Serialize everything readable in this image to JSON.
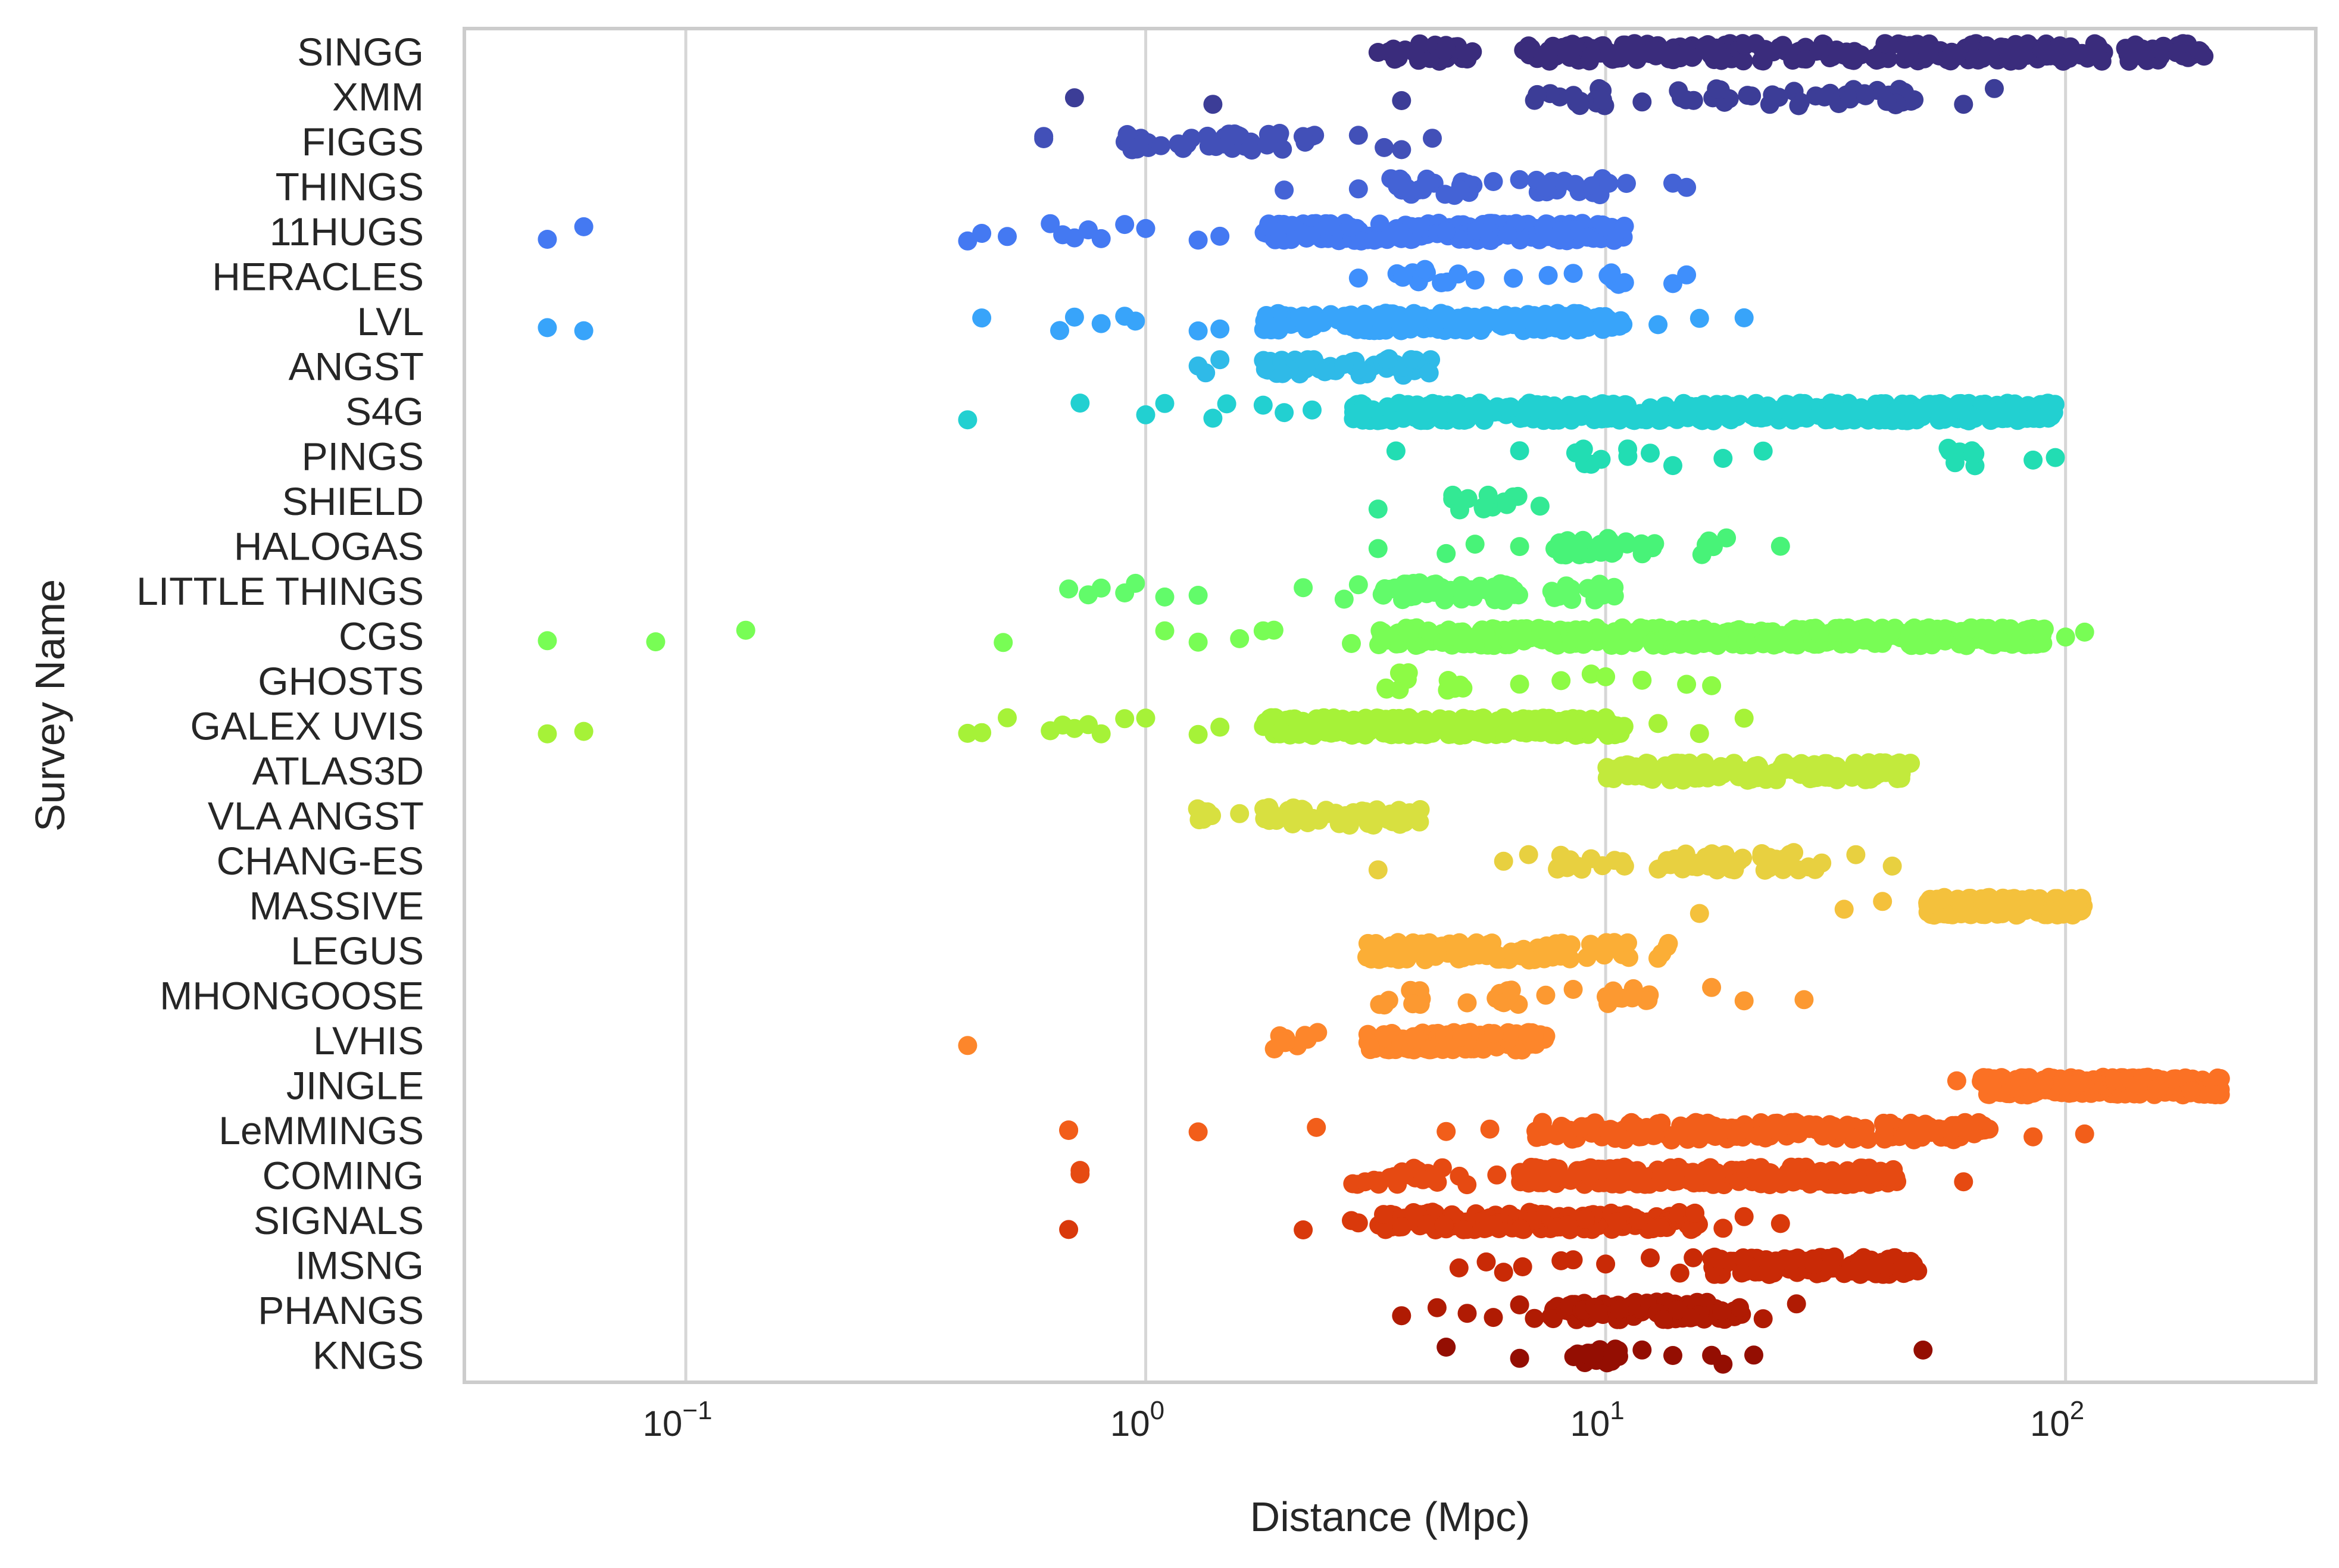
{
  "chart_data": {
    "type": "scatter",
    "subtype": "strip (log-x)",
    "xlabel": "Distance (Mpc)",
    "ylabel": "Survey Name",
    "xscale": "log",
    "xlim": [
      0.033,
      350
    ],
    "xticks": [
      {
        "value": 0.1,
        "base": "10",
        "exp": "−1"
      },
      {
        "value": 1,
        "base": "10",
        "exp": "0"
      },
      {
        "value": 10,
        "base": "10",
        "exp": "1"
      },
      {
        "value": 100,
        "base": "10",
        "exp": "2"
      }
    ],
    "grid": "vertical",
    "marker_color_scale": "jet / turbo (one colour per survey, top to bottom)",
    "series": [
      {
        "name": "SINGG",
        "color": "#3a2c7c",
        "ranges": [
          [
            3.2,
            5.2,
            30
          ],
          [
            6.5,
            200,
            260
          ]
        ],
        "points": [
          3.2,
          200,
          180,
          160,
          150,
          120
        ]
      },
      {
        "name": "XMM",
        "color": "#3c3d97",
        "ranges": [
          [
            6.5,
            10,
            14
          ],
          [
            13,
            48,
            40
          ]
        ],
        "points": [
          0.7,
          1.4,
          3.6,
          12,
          60,
          70
        ]
      },
      {
        "name": "FIGGS",
        "color": "#4250b8",
        "ranges": [
          [
            0.9,
            2.6,
            48
          ]
        ],
        "points": [
          0.6,
          0.6,
          2.9,
          3.3,
          3.6,
          4.2
        ]
      },
      {
        "name": "THINGS",
        "color": "#4463d6",
        "ranges": [
          [
            3.3,
            5.2,
            24
          ],
          [
            7,
            11.5,
            16
          ]
        ],
        "points": [
          2.0,
          2.9,
          5.7,
          6.5,
          14,
          15
        ]
      },
      {
        "name": "11HUGS",
        "color": "#4479f2",
        "ranges": [
          [
            1.8,
            11,
            260
          ]
        ],
        "points": [
          0.05,
          0.06,
          0.41,
          0.44,
          0.5,
          0.62,
          0.66,
          0.7,
          0.75,
          0.8,
          0.9,
          1.0,
          1.3,
          1.45
        ]
      },
      {
        "name": "HERACLES",
        "color": "#3f8ffc",
        "ranges": [
          [
            3.5,
            4.8,
            10
          ],
          [
            9.2,
            11,
            8
          ]
        ],
        "points": [
          2.9,
          5.2,
          6.3,
          7.5,
          8.5,
          14,
          15
        ]
      },
      {
        "name": "LVL",
        "color": "#38a4fa",
        "ranges": [
          [
            1.8,
            11,
            220
          ]
        ],
        "points": [
          0.05,
          0.06,
          0.44,
          0.65,
          0.7,
          0.8,
          0.9,
          0.95,
          1.3,
          1.45,
          13,
          16,
          20
        ]
      },
      {
        "name": "ANGST",
        "color": "#2fbae8",
        "ranges": [
          [
            1.8,
            4.2,
            60
          ]
        ],
        "points": [
          1.3,
          1.35,
          1.45
        ]
      },
      {
        "name": "S4G",
        "color": "#22d0d1",
        "ranges": [
          [
            2.8,
            95,
            500
          ]
        ],
        "points": [
          0.41,
          0.72,
          1.0,
          1.1,
          1.4,
          1.5,
          1.8,
          2.0,
          2.3
        ]
      },
      {
        "name": "PINGS",
        "color": "#22ddb3",
        "ranges": [
          [
            8.5,
            11.5,
            8
          ],
          [
            55,
            65,
            10
          ]
        ],
        "points": [
          3.5,
          6.5,
          12.5,
          14,
          18,
          22,
          85,
          95
        ]
      },
      {
        "name": "SHIELD",
        "color": "#33e994",
        "ranges": [
          [
            4.5,
            6.5,
            12
          ]
        ],
        "points": [
          3.2,
          7.2
        ]
      },
      {
        "name": "HALOGAS",
        "color": "#48f378",
        "ranges": [
          [
            7.5,
            13,
            30
          ],
          [
            16,
            20,
            6
          ]
        ],
        "points": [
          3.2,
          4.5,
          5.2,
          6.5,
          24
        ]
      },
      {
        "name": "LITTLE THINGS",
        "color": "#62fb6a",
        "ranges": [
          [
            3.2,
            6.5,
            60
          ],
          [
            7.5,
            11,
            14
          ]
        ],
        "points": [
          0.68,
          0.75,
          0.8,
          0.9,
          0.95,
          1.1,
          1.3,
          2.2,
          2.7,
          2.9
        ]
      },
      {
        "name": "CGS",
        "color": "#78fd55",
        "ranges": [
          [
            3.2,
            90,
            420
          ]
        ],
        "points": [
          0.05,
          0.086,
          0.135,
          0.49,
          1.1,
          1.3,
          1.6,
          1.8,
          1.9,
          2.8,
          100,
          110
        ]
      },
      {
        "name": "GHOSTS",
        "color": "#8dfb45",
        "ranges": [
          [
            3.3,
            3.9,
            6
          ],
          [
            4.5,
            5.2,
            6
          ]
        ],
        "points": [
          6.5,
          8.0,
          9.3,
          10.0,
          12,
          15,
          17
        ]
      },
      {
        "name": "GALEX UVIS",
        "color": "#a6f238",
        "ranges": [
          [
            1.8,
            11,
            320
          ]
        ],
        "points": [
          0.05,
          0.06,
          0.41,
          0.44,
          0.5,
          0.62,
          0.66,
          0.7,
          0.75,
          0.8,
          0.9,
          1.0,
          1.3,
          1.45,
          13,
          16,
          20
        ]
      },
      {
        "name": "ATLAS3D",
        "color": "#c2ea3c",
        "ranges": [
          [
            10,
            44,
            170
          ]
        ],
        "points": [
          46
        ]
      },
      {
        "name": "VLA ANGST",
        "color": "#d8e040",
        "ranges": [
          [
            1.25,
            1.4,
            6
          ],
          [
            1.8,
            4.0,
            50
          ]
        ],
        "points": [
          1.6
        ]
      },
      {
        "name": "CHANG-ES",
        "color": "#e8d040",
        "ranges": [
          [
            7.5,
            11,
            12
          ],
          [
            13,
            30,
            40
          ]
        ],
        "points": [
          3.2,
          6.0,
          6.8,
          35,
          42
        ]
      },
      {
        "name": "MASSIVE",
        "color": "#f4c13c",
        "ranges": [
          [
            50,
            110,
            170
          ]
        ],
        "points": [
          16,
          33,
          40
        ]
      },
      {
        "name": "LEGUS",
        "color": "#fbae36",
        "ranges": [
          [
            3.0,
            8.5,
            90
          ],
          [
            9,
            14,
            16
          ]
        ],
        "points": []
      },
      {
        "name": "MHONGOOSE",
        "color": "#fc9931",
        "ranges": [
          [
            3.2,
            4.0,
            8
          ],
          [
            5.5,
            7.5,
            10
          ],
          [
            10,
            13,
            10
          ]
        ],
        "points": [
          5.0,
          8.5,
          17,
          20,
          27
        ]
      },
      {
        "name": "LVHIS",
        "color": "#fd862b",
        "ranges": [
          [
            1.9,
            2.4,
            12
          ],
          [
            3.0,
            7.5,
            130
          ]
        ],
        "points": [
          0.41
        ]
      },
      {
        "name": "JINGLE",
        "color": "#fb7124",
        "ranges": [
          [
            65,
            220,
            320
          ]
        ],
        "points": [
          58
        ]
      },
      {
        "name": "LeMMINGS",
        "color": "#f25e1a",
        "ranges": [
          [
            7,
            70,
            200
          ]
        ],
        "points": [
          0.68,
          0.68,
          1.3,
          2.35,
          4.5,
          5.6,
          85,
          110
        ]
      },
      {
        "name": "COMING",
        "color": "#e64a12",
        "ranges": [
          [
            2.8,
            5.0,
            24
          ],
          [
            6.5,
            43,
            240
          ]
        ],
        "points": [
          0.72,
          0.72,
          5.8,
          60
        ]
      },
      {
        "name": "SIGNALS",
        "color": "#d9390b",
        "ranges": [
          [
            3.2,
            16,
            160
          ]
        ],
        "points": [
          0.68,
          2.2,
          2.8,
          2.9,
          18,
          20,
          24
        ]
      },
      {
        "name": "IMSNG",
        "color": "#c92a06",
        "ranges": [
          [
            17,
            48,
            110
          ]
        ],
        "points": [
          4.8,
          5.5,
          6.0,
          6.6,
          8.0,
          8.5,
          10.0,
          12.5,
          14.5,
          15.5
        ]
      },
      {
        "name": "PHANGS",
        "color": "#b01b03",
        "ranges": [
          [
            7.5,
            20,
            80
          ]
        ],
        "points": [
          3.6,
          4.3,
          5.0,
          5.7,
          6.5,
          7.0,
          22,
          26
        ]
      },
      {
        "name": "KNGS",
        "color": "#940e02",
        "ranges": [
          [
            8.5,
            11,
            18
          ]
        ],
        "points": [
          4.5,
          6.5,
          12,
          14,
          17,
          18,
          21,
          49
        ]
      }
    ]
  }
}
